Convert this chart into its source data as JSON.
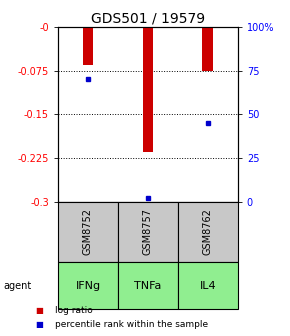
{
  "title": "GDS501 / 19579",
  "samples": [
    "GSM8752",
    "GSM8757",
    "GSM8762"
  ],
  "agents": [
    "IFNg",
    "TNFa",
    "IL4"
  ],
  "log_ratios": [
    -0.065,
    -0.215,
    -0.075
  ],
  "percentile_ranks": [
    0.7,
    0.02,
    0.45
  ],
  "ylim_left": [
    -0.3,
    0.0
  ],
  "yticks_left": [
    -0.3,
    -0.225,
    -0.15,
    -0.075,
    0.0
  ],
  "ytick_labels_left": [
    "-0.3",
    "-0.225",
    "-0.15",
    "-0.075",
    "-0"
  ],
  "yticks_right_vals": [
    0,
    25,
    50,
    75,
    100
  ],
  "ytick_labels_right": [
    "0",
    "25",
    "50",
    "75",
    "100%"
  ],
  "bar_color": "#cc0000",
  "marker_color": "#0000cc",
  "bar_width": 0.18,
  "sample_bg_color": "#c8c8c8",
  "agent_bg_color": "#90ee90",
  "title_fontsize": 10,
  "tick_fontsize": 7,
  "legend_fontsize": 6.5,
  "agent_label_fontsize": 8,
  "sample_label_fontsize": 7
}
